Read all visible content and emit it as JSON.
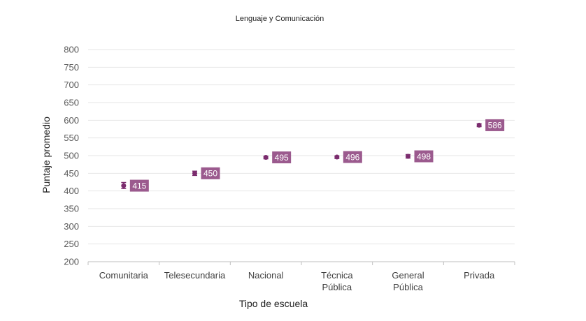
{
  "chart_data": {
    "type": "scatter",
    "title": "Lenguaje y Comunicación",
    "xlabel": "Tipo de escuela",
    "ylabel": "Puntaje promedio",
    "ylim": [
      200,
      800
    ],
    "yticks": [
      200,
      250,
      300,
      350,
      400,
      450,
      500,
      550,
      600,
      650,
      700,
      750,
      800
    ],
    "categories": [
      [
        "Comunitaria"
      ],
      [
        "Telesecundaria"
      ],
      [
        "Nacional"
      ],
      [
        "Técnica",
        "Pública"
      ],
      [
        "General",
        "Pública"
      ],
      [
        "Privada"
      ]
    ],
    "values": [
      415,
      450,
      495,
      496,
      498,
      586
    ],
    "error_low": [
      407,
      444,
      491,
      492,
      493,
      582
    ],
    "error_high": [
      424,
      456,
      498,
      499,
      503,
      590
    ],
    "grid": true,
    "colors": {
      "marker": "#7b2c6e",
      "label_bg": "#9b5a8e"
    }
  }
}
